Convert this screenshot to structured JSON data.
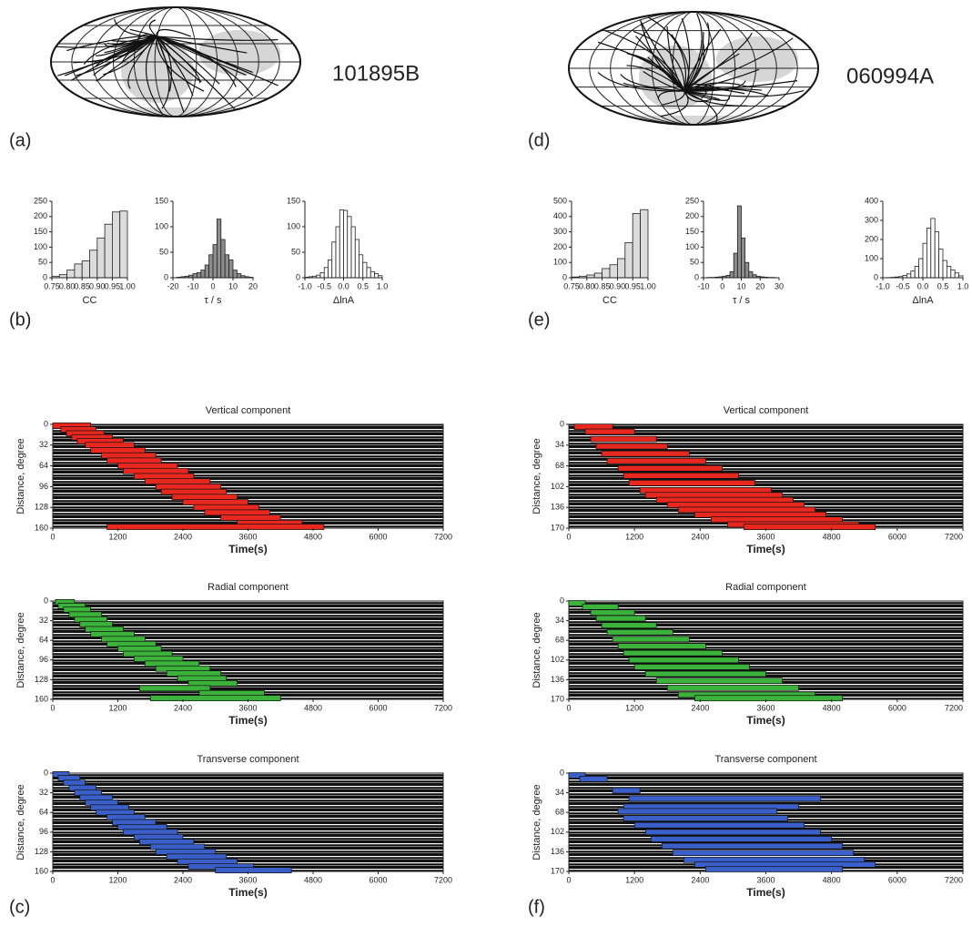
{
  "panel_labels": [
    "(a)",
    "(b)",
    "(c)",
    "(d)",
    "(e)",
    "(f)"
  ],
  "chart_data": [
    {
      "type": "map",
      "title": "101895B"
    },
    {
      "type": "histogram",
      "xlabel": "CC",
      "color": "#dcdcdc",
      "bins": [
        0.75,
        0.775,
        0.8,
        0.825,
        0.85,
        0.875,
        0.9,
        0.925,
        0.95,
        0.975,
        1.0
      ],
      "values": [
        5,
        10,
        25,
        45,
        55,
        90,
        130,
        175,
        215,
        218
      ],
      "xlim": [
        0.75,
        1.0
      ],
      "xticks": [
        0.75,
        {
          "value": 0.8,
          "label": "0.80"
        },
        0.85,
        {
          "value": 0.9,
          "label": "0.90"
        },
        0.95,
        {
          "value": 1,
          "label": "1.00"
        }
      ],
      "ylim": [
        0,
        250
      ],
      "yticks": [
        0,
        50,
        100,
        150,
        200,
        250
      ]
    },
    {
      "type": "histogram",
      "xlabel": "τ / s",
      "color": "#8c8c8c",
      "bins": [
        -20,
        -18,
        -16,
        -14,
        -12,
        -10,
        -8,
        -6,
        -4,
        -2,
        0,
        2,
        4,
        6,
        8,
        10,
        12,
        14,
        16,
        18,
        20
      ],
      "values": [
        0,
        1,
        2,
        3,
        5,
        8,
        10,
        15,
        25,
        45,
        65,
        115,
        75,
        45,
        35,
        15,
        8,
        4,
        2,
        1
      ],
      "xlim": [
        -20,
        20
      ],
      "xticks": [
        -20,
        -10,
        0,
        10,
        20
      ],
      "ylim": [
        0,
        150
      ],
      "yticks": [
        0,
        50,
        100,
        150
      ]
    },
    {
      "type": "histogram",
      "xlabel": "ΔlnA",
      "color": "#ffffff",
      "bins": [
        -1,
        -0.9,
        -0.8,
        -0.7,
        -0.6,
        -0.5,
        -0.4,
        -0.3,
        -0.2,
        -0.1,
        0,
        0.1,
        0.2,
        0.3,
        0.4,
        0.5,
        0.6,
        0.7,
        0.8,
        0.9,
        1
      ],
      "values": [
        1,
        2,
        3,
        5,
        10,
        20,
        35,
        70,
        100,
        133,
        132,
        120,
        100,
        75,
        45,
        30,
        20,
        12,
        8,
        4
      ],
      "xlim": [
        -1,
        1
      ],
      "xticks": [
        {
          "value": -1,
          "label": "-1.0"
        },
        {
          "value": -0.5,
          "label": "-0.5"
        },
        {
          "value": 0,
          "label": "0.0"
        },
        {
          "value": 0.5,
          "label": "0.5"
        },
        {
          "value": 1,
          "label": "1.0"
        }
      ],
      "ylim": [
        0,
        150
      ],
      "yticks": [
        0,
        50,
        100,
        150
      ]
    },
    {
      "type": "window",
      "title": "Vertical component",
      "xlabel": "Time(s)",
      "ylabel": "Distance, degree",
      "color": "#e8281e",
      "y_reversed": true,
      "xlim": [
        0,
        7200
      ],
      "xticks": [
        0,
        1200,
        2400,
        3600,
        4800,
        6000,
        7200
      ],
      "ylim": [
        0,
        160
      ],
      "yticks": [
        0,
        32,
        64,
        96,
        128,
        160
      ],
      "windows": {
        "distance": [
          2,
          8,
          14,
          20,
          26,
          32,
          40,
          48,
          56,
          64,
          72,
          80,
          88,
          96,
          104,
          112,
          120,
          128,
          136,
          144,
          152,
          158
        ],
        "start": [
          0,
          150,
          250,
          350,
          450,
          600,
          700,
          900,
          1000,
          1200,
          1300,
          1500,
          1700,
          1900,
          2000,
          2200,
          2400,
          2600,
          2800,
          3100,
          3400,
          1000
        ],
        "end": [
          700,
          800,
          950,
          1100,
          1300,
          1500,
          1700,
          1900,
          2000,
          2300,
          2500,
          2600,
          2900,
          3100,
          3200,
          3400,
          3600,
          3800,
          4000,
          4200,
          4600,
          5000
        ]
      }
    },
    {
      "type": "window",
      "title": "Radial component",
      "xlabel": "Time(s)",
      "ylabel": "Distance, degree",
      "color": "#3bb33b",
      "y_reversed": true,
      "xlim": [
        0,
        7200
      ],
      "xticks": [
        0,
        1200,
        2400,
        3600,
        4800,
        6000,
        7200
      ],
      "ylim": [
        0,
        160
      ],
      "yticks": [
        0,
        32,
        64,
        96,
        128,
        160
      ],
      "windows": {
        "distance": [
          2,
          8,
          14,
          22,
          30,
          38,
          46,
          54,
          62,
          70,
          78,
          86,
          94,
          102,
          110,
          118,
          126,
          134,
          142,
          150,
          158
        ],
        "start": [
          50,
          100,
          200,
          300,
          400,
          500,
          600,
          700,
          900,
          1000,
          1200,
          1300,
          1500,
          1700,
          1900,
          2100,
          2300,
          2500,
          1600,
          2700,
          1800
        ],
        "end": [
          400,
          600,
          700,
          900,
          1000,
          1100,
          1300,
          1500,
          1700,
          1900,
          2000,
          2200,
          2400,
          2700,
          2900,
          3100,
          3200,
          3400,
          2900,
          3900,
          4200
        ]
      }
    },
    {
      "type": "window",
      "title": "Transverse component",
      "xlabel": "Time(s)",
      "ylabel": "Distance, degree",
      "color": "#3a5fc8",
      "y_reversed": true,
      "xlim": [
        0,
        7200
      ],
      "xticks": [
        0,
        1200,
        2400,
        3600,
        4800,
        6000,
        7200
      ],
      "ylim": [
        0,
        160
      ],
      "yticks": [
        0,
        32,
        64,
        96,
        128,
        160
      ],
      "windows": {
        "distance": [
          2,
          8,
          16,
          24,
          32,
          40,
          48,
          56,
          64,
          72,
          80,
          88,
          96,
          104,
          112,
          120,
          128,
          136,
          144,
          152,
          158
        ],
        "start": [
          0,
          100,
          200,
          300,
          400,
          500,
          600,
          700,
          800,
          1000,
          1100,
          1200,
          1300,
          1500,
          1600,
          1800,
          1900,
          2100,
          2300,
          2500,
          3000
        ],
        "end": [
          300,
          500,
          600,
          800,
          900,
          1100,
          1200,
          1400,
          1500,
          1700,
          1900,
          2100,
          2300,
          2400,
          2600,
          2800,
          3000,
          3200,
          3400,
          3700,
          4400
        ]
      }
    },
    {
      "type": "map",
      "title": "060994A"
    },
    {
      "type": "histogram",
      "xlabel": "CC",
      "color": "#dcdcdc",
      "bins": [
        0.75,
        0.775,
        0.8,
        0.825,
        0.85,
        0.875,
        0.9,
        0.925,
        0.95,
        0.975,
        1.0
      ],
      "values": [
        5,
        10,
        18,
        30,
        60,
        85,
        125,
        230,
        420,
        445
      ],
      "xlim": [
        0.75,
        1.0
      ],
      "xticks": [
        0.75,
        {
          "value": 0.8,
          "label": "0.80"
        },
        0.85,
        {
          "value": 0.9,
          "label": "0.90"
        },
        0.95,
        {
          "value": 1,
          "label": "1.00"
        }
      ],
      "ylim": [
        0,
        500
      ],
      "yticks": [
        0,
        100,
        200,
        300,
        400,
        500
      ]
    },
    {
      "type": "histogram",
      "xlabel": "τ / s",
      "color": "#8c8c8c",
      "bins": [
        -10,
        -8,
        -6,
        -4,
        -2,
        0,
        2,
        4,
        6,
        8,
        10,
        12,
        14,
        16,
        18,
        20,
        22,
        24,
        26,
        28,
        30
      ],
      "values": [
        0,
        1,
        1,
        2,
        3,
        5,
        8,
        20,
        80,
        235,
        130,
        50,
        20,
        10,
        5,
        3,
        2,
        1,
        1,
        0
      ],
      "xlim": [
        -10,
        30
      ],
      "xticks": [
        -10,
        0,
        10,
        20,
        30
      ],
      "ylim": [
        0,
        250
      ],
      "yticks": [
        0,
        50,
        100,
        150,
        200,
        250
      ]
    },
    {
      "type": "histogram",
      "xlabel": "ΔlnA",
      "color": "#ffffff",
      "bins": [
        -1,
        -0.9,
        -0.8,
        -0.7,
        -0.6,
        -0.5,
        -0.4,
        -0.3,
        -0.2,
        -0.1,
        0,
        0.1,
        0.2,
        0.3,
        0.4,
        0.5,
        0.6,
        0.7,
        0.8,
        0.9,
        1
      ],
      "values": [
        0,
        1,
        2,
        4,
        6,
        12,
        20,
        35,
        60,
        100,
        180,
        260,
        310,
        240,
        150,
        90,
        60,
        40,
        25,
        10
      ],
      "xlim": [
        -1,
        1
      ],
      "xticks": [
        {
          "value": -1,
          "label": "-1.0"
        },
        {
          "value": -0.5,
          "label": "-0.5"
        },
        {
          "value": 0,
          "label": "0.0"
        },
        {
          "value": 0.5,
          "label": "0.5"
        },
        {
          "value": 1,
          "label": "1.0"
        }
      ],
      "ylim": [
        0,
        400
      ],
      "yticks": [
        0,
        100,
        200,
        300,
        400
      ]
    },
    {
      "type": "window",
      "title": "Vertical component",
      "xlabel": "Time(s)",
      "ylabel": "Distance, degree",
      "color": "#e8281e",
      "y_reversed": true,
      "xlim": [
        0,
        7200
      ],
      "xticks": [
        0,
        1200,
        2400,
        3600,
        4800,
        6000,
        7200
      ],
      "ylim": [
        0,
        170
      ],
      "yticks": [
        0,
        34,
        68,
        102,
        136,
        170
      ],
      "windows": {
        "distance": [
          4,
          12,
          24,
          36,
          48,
          60,
          72,
          84,
          96,
          108,
          116,
          124,
          132,
          140,
          148,
          156,
          164,
          168
        ],
        "start": [
          100,
          300,
          400,
          500,
          600,
          700,
          900,
          1000,
          1100,
          1300,
          1400,
          1600,
          1800,
          2000,
          2300,
          2600,
          2900,
          3200
        ],
        "end": [
          800,
          1200,
          1600,
          1800,
          2200,
          2500,
          2800,
          3100,
          3400,
          3700,
          3900,
          4100,
          4300,
          4500,
          4700,
          5000,
          5300,
          5600
        ]
      }
    },
    {
      "type": "window",
      "title": "Radial component",
      "xlabel": "Time(s)",
      "ylabel": "Distance, degree",
      "color": "#3bb33b",
      "y_reversed": true,
      "xlim": [
        0,
        7200
      ],
      "xticks": [
        0,
        1200,
        2400,
        3600,
        4800,
        6000,
        7200
      ],
      "ylim": [
        0,
        170
      ],
      "yticks": [
        0,
        34,
        68,
        102,
        136,
        170
      ],
      "windows": {
        "distance": [
          4,
          10,
          20,
          30,
          42,
          54,
          66,
          78,
          90,
          102,
          114,
          126,
          138,
          150,
          162,
          168
        ],
        "start": [
          0,
          250,
          400,
          500,
          600,
          700,
          800,
          900,
          1000,
          1100,
          1200,
          1400,
          1600,
          1800,
          2000,
          2300
        ],
        "end": [
          300,
          900,
          1200,
          1400,
          1600,
          1900,
          2200,
          2500,
          2800,
          3100,
          3300,
          3600,
          3900,
          4200,
          4500,
          5000
        ]
      }
    },
    {
      "type": "window",
      "title": "Transverse component",
      "xlabel": "Time(s)",
      "ylabel": "Distance, degree",
      "color": "#3a5fc8",
      "y_reversed": true,
      "xlim": [
        0,
        7200
      ],
      "xticks": [
        0,
        1200,
        2400,
        3600,
        4800,
        6000,
        7200
      ],
      "ylim": [
        0,
        170
      ],
      "yticks": [
        0,
        34,
        68,
        102,
        136,
        170
      ],
      "windows": {
        "distance": [
          4,
          10,
          30,
          44,
          58,
          66,
          78,
          90,
          102,
          114,
          126,
          138,
          150,
          158,
          166
        ],
        "start": [
          0,
          200,
          800,
          1100,
          1000,
          900,
          1000,
          1200,
          1400,
          1500,
          1700,
          1900,
          2100,
          2300,
          2500
        ],
        "end": [
          300,
          700,
          1300,
          4600,
          4200,
          3800,
          4000,
          4300,
          4600,
          4800,
          5000,
          5200,
          5400,
          5600,
          5000
        ]
      }
    }
  ]
}
